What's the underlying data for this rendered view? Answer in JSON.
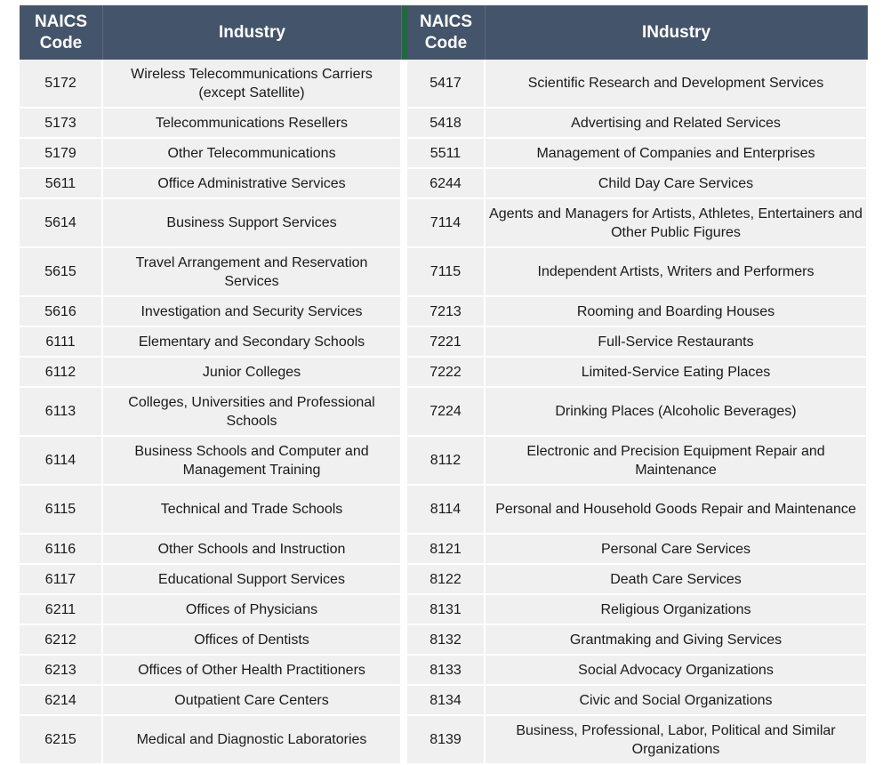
{
  "headers": {
    "code_left": "NAICS Code",
    "industry_left": "Industry",
    "code_right": "NAICS Code",
    "industry_right": "INdustry"
  },
  "rows": [
    {
      "left_code": "5172",
      "left_industry": "Wireless Telecommunications Carriers (except Satellite)",
      "right_code": "5417",
      "right_industry": "Scientific Research and Development Services"
    },
    {
      "left_code": "5173",
      "left_industry": "Telecommunications Resellers",
      "right_code": "5418",
      "right_industry": "Advertising and Related Services"
    },
    {
      "left_code": "5179",
      "left_industry": "Other Telecommunications",
      "right_code": "5511",
      "right_industry": "Management of Companies and Enterprises"
    },
    {
      "left_code": "5611",
      "left_industry": "Office Administrative Services",
      "right_code": "6244",
      "right_industry": "Child Day Care Services"
    },
    {
      "left_code": "5614",
      "left_industry": "Business Support Services",
      "right_code": "7114",
      "right_industry": "Agents and Managers for Artists, Athletes, Entertainers and Other Public Figures"
    },
    {
      "left_code": "5615",
      "left_industry": "Travel Arrangement and Reservation Services",
      "right_code": "7115",
      "right_industry": "Independent Artists, Writers and Performers"
    },
    {
      "left_code": "5616",
      "left_industry": "Investigation and Security Services",
      "right_code": "7213",
      "right_industry": "Rooming and Boarding Houses"
    },
    {
      "left_code": "6111",
      "left_industry": "Elementary and Secondary Schools",
      "right_code": "7221",
      "right_industry": "Full-Service Restaurants"
    },
    {
      "left_code": "6112",
      "left_industry": "Junior Colleges",
      "right_code": "7222",
      "right_industry": "Limited-Service Eating Places"
    },
    {
      "left_code": "6113",
      "left_industry": "Colleges, Universities and Professional Schools",
      "right_code": "7224",
      "right_industry": "Drinking Places (Alcoholic Beverages)"
    },
    {
      "left_code": "6114",
      "left_industry": "Business Schools and Computer and Management Training",
      "right_code": "8112",
      "right_industry": "Electronic and Precision Equipment Repair and Maintenance"
    },
    {
      "left_code": "6115",
      "left_industry": "Technical and Trade Schools",
      "right_code": "8114",
      "right_industry": "Personal and Household Goods Repair and Maintenance"
    },
    {
      "left_code": "6116",
      "left_industry": "Other Schools and Instruction",
      "right_code": "8121",
      "right_industry": "Personal Care Services"
    },
    {
      "left_code": "6117",
      "left_industry": "Educational Support Services",
      "right_code": "8122",
      "right_industry": "Death Care Services"
    },
    {
      "left_code": "6211",
      "left_industry": "Offices of Physicians",
      "right_code": "8131",
      "right_industry": "Religious Organizations"
    },
    {
      "left_code": "6212",
      "left_industry": "Offices of Dentists",
      "right_code": "8132",
      "right_industry": "Grantmaking and Giving Services"
    },
    {
      "left_code": "6213",
      "left_industry": "Offices of Other Health Practitioners",
      "right_code": "8133",
      "right_industry": "Social Advocacy Organizations"
    },
    {
      "left_code": "6214",
      "left_industry": "Outpatient Care Centers",
      "right_code": "8134",
      "right_industry": "Civic and Social Organizations"
    },
    {
      "left_code": "6215",
      "left_industry": "Medical and Diagnostic Laboratories",
      "right_code": "8139",
      "right_industry": "Business, Professional, Labor, Political and Similar Organizations"
    }
  ]
}
